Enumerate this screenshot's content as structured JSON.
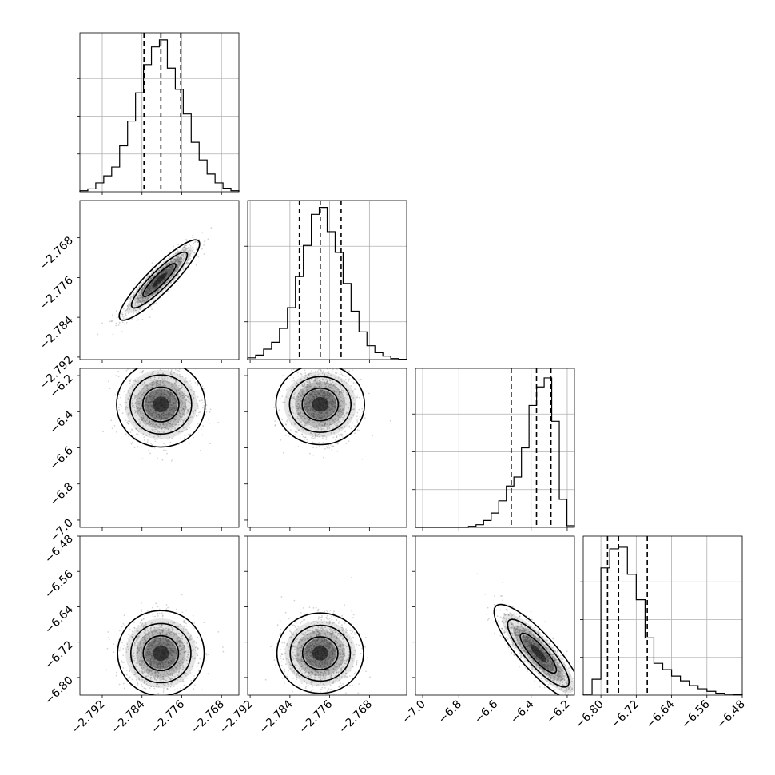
{
  "chart_data": {
    "type": "corner",
    "title": "",
    "grid": true,
    "parameters": [
      {
        "range": [
          -2.7965,
          -2.7645
        ],
        "ticks": [
          -2.792,
          -2.784,
          -2.776,
          -2.768
        ],
        "tick_labels": [
          "−2.792",
          "−2.784",
          "−2.776",
          "−2.768"
        ],
        "quantiles": [
          -2.7836,
          -2.7802,
          -2.7762
        ],
        "hist": [
          0.3,
          0.8,
          2.5,
          4.5,
          7.0,
          13.0,
          20.0,
          28.0,
          36.0,
          41.0,
          43.0,
          35.0,
          29.0,
          22.0,
          14.0,
          9.0,
          5.0,
          2.5,
          1.0,
          0.3
        ],
        "hist_max": 45
      },
      {
        "range": [
          -2.7925,
          -2.7605
        ],
        "ticks": [
          -2.792,
          -2.784,
          -2.776,
          -2.768
        ],
        "tick_labels": [
          "−2.792",
          "−2.784",
          "−2.776",
          "−2.768"
        ],
        "quantiles": [
          -2.7821,
          -2.7779,
          -2.7737
        ],
        "hist": [
          0.5,
          1.3,
          3.0,
          5.0,
          9.0,
          15.0,
          24.0,
          33.0,
          42.0,
          44.0,
          37.0,
          31.0,
          22.0,
          14.0,
          8.0,
          4.0,
          2.0,
          1.0,
          0.3,
          0.1
        ],
        "hist_max": 46
      },
      {
        "range": [
          -7.04,
          -6.16
        ],
        "ticks": [
          -7.0,
          -6.8,
          -6.6,
          -6.4,
          -6.2
        ],
        "tick_labels": [
          "−7.0",
          "−6.8",
          "−6.6",
          "−6.4",
          "−6.2"
        ],
        "quantiles": [
          -6.51,
          -6.37,
          -6.29
        ],
        "hist": [
          0,
          0,
          0,
          0,
          0,
          0,
          0,
          0.2,
          0.5,
          1.3,
          2.7,
          5.0,
          7.8,
          9.5,
          15.0,
          23.0,
          26.5,
          28.2,
          20.0,
          5.3,
          0.3
        ],
        "hist_max": 30
      },
      {
        "range": [
          -6.84,
          -6.48
        ],
        "ticks": [
          -6.8,
          -6.72,
          -6.64,
          -6.56,
          -6.48
        ],
        "tick_labels": [
          "−6.80",
          "−6.72",
          "−6.64",
          "−6.56",
          "−6.48"
        ],
        "quantiles": [
          -6.785,
          -6.76,
          -6.695
        ],
        "hist": [
          0.3,
          5.0,
          40.0,
          46.0,
          46.5,
          38.0,
          30.0,
          18.0,
          10.0,
          8.0,
          6.0,
          4.5,
          3.0,
          2.0,
          1.2,
          0.6,
          0.3,
          0.1
        ],
        "hist_max": 50
      }
    ],
    "pairs": [
      {
        "x": 0,
        "y": 1,
        "center": [
          -2.7805,
          -2.7765
        ],
        "sx": 0.0033,
        "sy": 0.0033,
        "rho": 0.9
      },
      {
        "x": 0,
        "y": 2,
        "center": [
          -2.7802,
          -6.36
        ],
        "sx": 0.0035,
        "sy": 0.1,
        "rho": 0.0
      },
      {
        "x": 1,
        "y": 2,
        "center": [
          -2.7779,
          -6.36
        ],
        "sx": 0.0033,
        "sy": 0.1,
        "rho": 0.0
      },
      {
        "x": 0,
        "y": 3,
        "center": [
          -2.7802,
          -6.745
        ],
        "sx": 0.0035,
        "sy": 0.04,
        "rho": 0.0
      },
      {
        "x": 1,
        "y": 3,
        "center": [
          -2.7779,
          -6.745
        ],
        "sx": 0.0033,
        "sy": 0.04,
        "rho": 0.0
      },
      {
        "x": 2,
        "y": 3,
        "center": [
          -6.36,
          -6.745
        ],
        "sx": 0.1,
        "sy": 0.045,
        "rho": -0.85
      }
    ]
  }
}
